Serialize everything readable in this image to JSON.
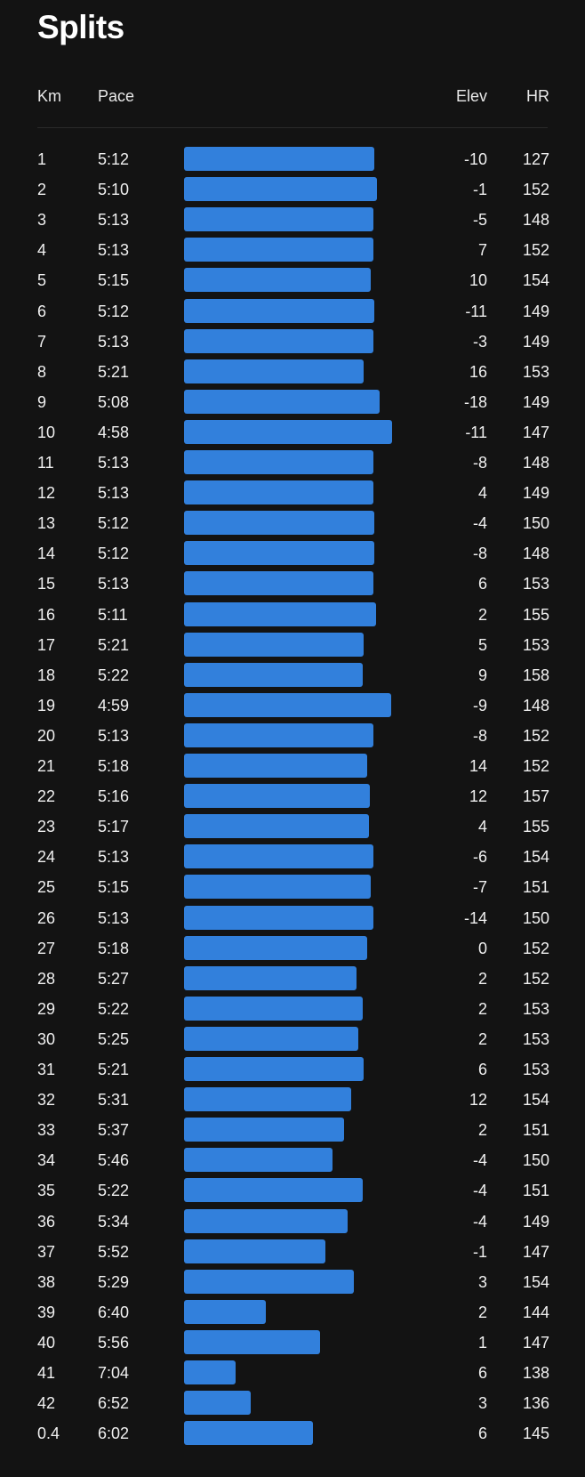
{
  "title": "Splits",
  "columns": {
    "km": "Km",
    "pace": "Pace",
    "elev": "Elev",
    "hr": "HR"
  },
  "colors": {
    "bar": "#3280DC",
    "background": "#131313"
  },
  "chart_data": {
    "type": "bar",
    "orientation": "horizontal",
    "note_series": "bar length inversely proportional to pace",
    "rows": [
      {
        "km": "1",
        "pace": "5:12",
        "elev": "-10",
        "hr": "127"
      },
      {
        "km": "2",
        "pace": "5:10",
        "elev": "-1",
        "hr": "152"
      },
      {
        "km": "3",
        "pace": "5:13",
        "elev": "-5",
        "hr": "148"
      },
      {
        "km": "4",
        "pace": "5:13",
        "elev": "7",
        "hr": "152"
      },
      {
        "km": "5",
        "pace": "5:15",
        "elev": "10",
        "hr": "154"
      },
      {
        "km": "6",
        "pace": "5:12",
        "elev": "-11",
        "hr": "149"
      },
      {
        "km": "7",
        "pace": "5:13",
        "elev": "-3",
        "hr": "149"
      },
      {
        "km": "8",
        "pace": "5:21",
        "elev": "16",
        "hr": "153"
      },
      {
        "km": "9",
        "pace": "5:08",
        "elev": "-18",
        "hr": "149"
      },
      {
        "km": "10",
        "pace": "4:58",
        "elev": "-11",
        "hr": "147"
      },
      {
        "km": "11",
        "pace": "5:13",
        "elev": "-8",
        "hr": "148"
      },
      {
        "km": "12",
        "pace": "5:13",
        "elev": "4",
        "hr": "149"
      },
      {
        "km": "13",
        "pace": "5:12",
        "elev": "-4",
        "hr": "150"
      },
      {
        "km": "14",
        "pace": "5:12",
        "elev": "-8",
        "hr": "148"
      },
      {
        "km": "15",
        "pace": "5:13",
        "elev": "6",
        "hr": "153"
      },
      {
        "km": "16",
        "pace": "5:11",
        "elev": "2",
        "hr": "155"
      },
      {
        "km": "17",
        "pace": "5:21",
        "elev": "5",
        "hr": "153"
      },
      {
        "km": "18",
        "pace": "5:22",
        "elev": "9",
        "hr": "158"
      },
      {
        "km": "19",
        "pace": "4:59",
        "elev": "-9",
        "hr": "148"
      },
      {
        "km": "20",
        "pace": "5:13",
        "elev": "-8",
        "hr": "152"
      },
      {
        "km": "21",
        "pace": "5:18",
        "elev": "14",
        "hr": "152"
      },
      {
        "km": "22",
        "pace": "5:16",
        "elev": "12",
        "hr": "157"
      },
      {
        "km": "23",
        "pace": "5:17",
        "elev": "4",
        "hr": "155"
      },
      {
        "km": "24",
        "pace": "5:13",
        "elev": "-6",
        "hr": "154"
      },
      {
        "km": "25",
        "pace": "5:15",
        "elev": "-7",
        "hr": "151"
      },
      {
        "km": "26",
        "pace": "5:13",
        "elev": "-14",
        "hr": "150"
      },
      {
        "km": "27",
        "pace": "5:18",
        "elev": "0",
        "hr": "152"
      },
      {
        "km": "28",
        "pace": "5:27",
        "elev": "2",
        "hr": "152"
      },
      {
        "km": "29",
        "pace": "5:22",
        "elev": "2",
        "hr": "153"
      },
      {
        "km": "30",
        "pace": "5:25",
        "elev": "2",
        "hr": "153"
      },
      {
        "km": "31",
        "pace": "5:21",
        "elev": "6",
        "hr": "153"
      },
      {
        "km": "32",
        "pace": "5:31",
        "elev": "12",
        "hr": "154"
      },
      {
        "km": "33",
        "pace": "5:37",
        "elev": "2",
        "hr": "151"
      },
      {
        "km": "34",
        "pace": "5:46",
        "elev": "-4",
        "hr": "150"
      },
      {
        "km": "35",
        "pace": "5:22",
        "elev": "-4",
        "hr": "151"
      },
      {
        "km": "36",
        "pace": "5:34",
        "elev": "-4",
        "hr": "149"
      },
      {
        "km": "37",
        "pace": "5:52",
        "elev": "-1",
        "hr": "147"
      },
      {
        "km": "38",
        "pace": "5:29",
        "elev": "3",
        "hr": "154"
      },
      {
        "km": "39",
        "pace": "6:40",
        "elev": "2",
        "hr": "144"
      },
      {
        "km": "40",
        "pace": "5:56",
        "elev": "1",
        "hr": "147"
      },
      {
        "km": "41",
        "pace": "7:04",
        "elev": "6",
        "hr": "138"
      },
      {
        "km": "42",
        "pace": "6:52",
        "elev": "3",
        "hr": "136"
      },
      {
        "km": "0.4",
        "pace": "6:02",
        "elev": "6",
        "hr": "145"
      }
    ]
  }
}
